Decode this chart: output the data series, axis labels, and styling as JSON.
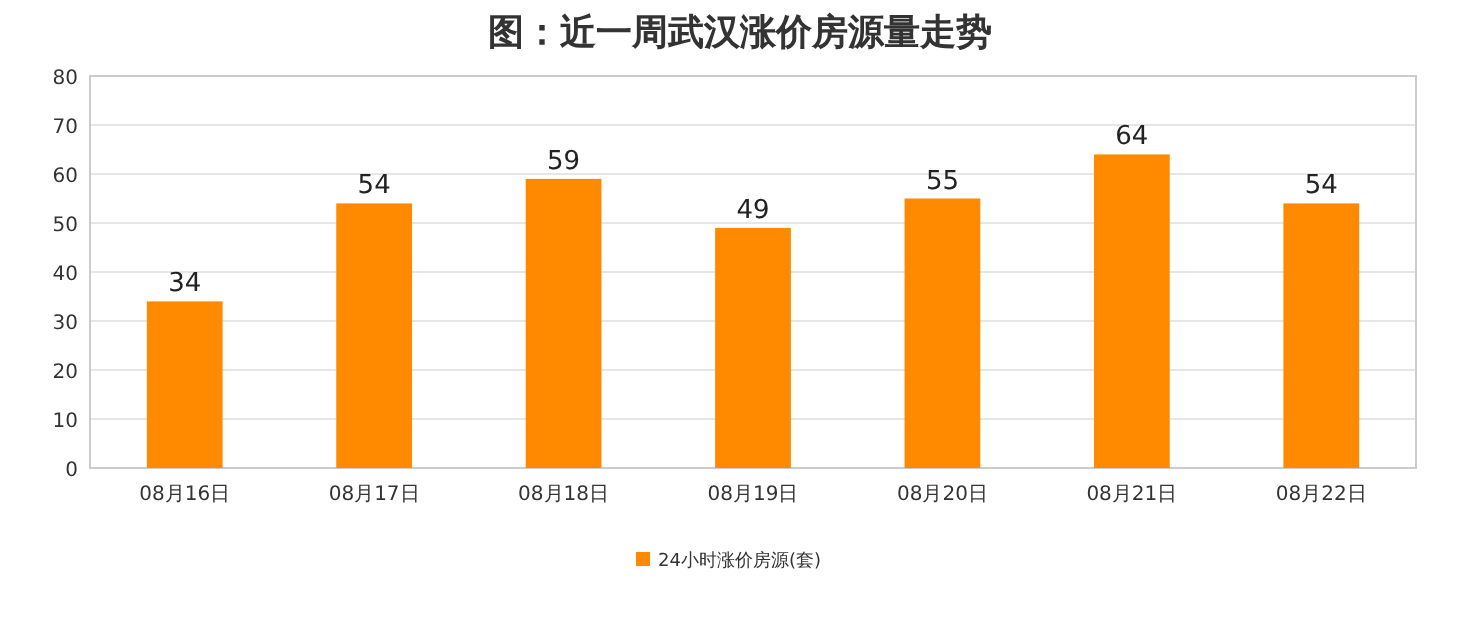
{
  "chart_data": {
    "type": "bar",
    "title": "图：近一周武汉涨价房源量走势",
    "categories": [
      "08月16日",
      "08月17日",
      "08月18日",
      "08月19日",
      "08月20日",
      "08月21日",
      "08月22日"
    ],
    "series": [
      {
        "name": "24小时涨价房源(套)",
        "color": "#ff8a00",
        "values": [
          34,
          54,
          59,
          49,
          55,
          64,
          54
        ]
      }
    ],
    "ylim": [
      0,
      80
    ],
    "yticks": [
      0,
      10,
      20,
      30,
      40,
      50,
      60,
      70,
      80
    ],
    "grid": "y",
    "legend": "bottom",
    "data_labels": true
  }
}
